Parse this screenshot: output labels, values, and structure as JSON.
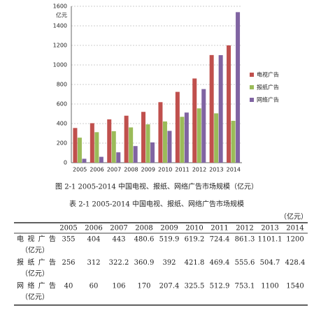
{
  "chart_data": {
    "type": "bar",
    "y_label": "亿元",
    "categories": [
      "2005",
      "2006",
      "2007",
      "2008",
      "2009",
      "2010",
      "2011",
      "2012",
      "2013",
      "2014"
    ],
    "series": [
      {
        "name": "电视广告",
        "color": "#c0504d",
        "values": [
          355,
          404,
          443,
          480.6,
          519.9,
          619.2,
          724.4,
          861.3,
          1101.1,
          1200
        ]
      },
      {
        "name": "报纸广告",
        "color": "#9bbb59",
        "values": [
          256,
          312,
          322.2,
          360.9,
          392,
          421.8,
          469.4,
          555.6,
          504.7,
          428.4
        ]
      },
      {
        "name": "网络广告",
        "color": "#8064a2",
        "values": [
          40,
          60,
          106,
          170,
          207.4,
          325.5,
          512.9,
          753.1,
          1100,
          1540
        ]
      }
    ],
    "ylim": [
      0,
      1600
    ],
    "yticks": [
      0,
      200,
      400,
      600,
      800,
      1000,
      1200,
      1400,
      1600
    ],
    "grid": true,
    "legend": "right"
  },
  "figure_caption": "图 2-1 2005-2014 中国电视、报纸、网络广告市场规模（亿元）",
  "table": {
    "caption": "表 2-1 2005-2014 中国电视、报纸、网络广告市场规模",
    "unit": "（亿元）",
    "header": [
      "2005",
      "2006",
      "2007",
      "2008",
      "2009",
      "2010",
      "2011",
      "2012",
      "2013",
      "2014"
    ],
    "rows": [
      {
        "label": "电视广告",
        "unit": "（亿元）",
        "cells": [
          "355",
          "404",
          "443",
          "480.6",
          "519.9",
          "619.2",
          "724.4",
          "861.3",
          "1101.1",
          "1200"
        ]
      },
      {
        "label": "报纸广告",
        "unit": "（亿元）",
        "cells": [
          "256",
          "312",
          "322.2",
          "360.9",
          "392",
          "421.8",
          "469.4",
          "555.6",
          "504.7",
          "428.4"
        ]
      },
      {
        "label": "网络广告",
        "unit": "（亿元）",
        "cells": [
          "40",
          "60",
          "106",
          "170",
          "207.4",
          "325.5",
          "512.9",
          "753.1",
          "1100",
          "1540"
        ]
      }
    ]
  }
}
